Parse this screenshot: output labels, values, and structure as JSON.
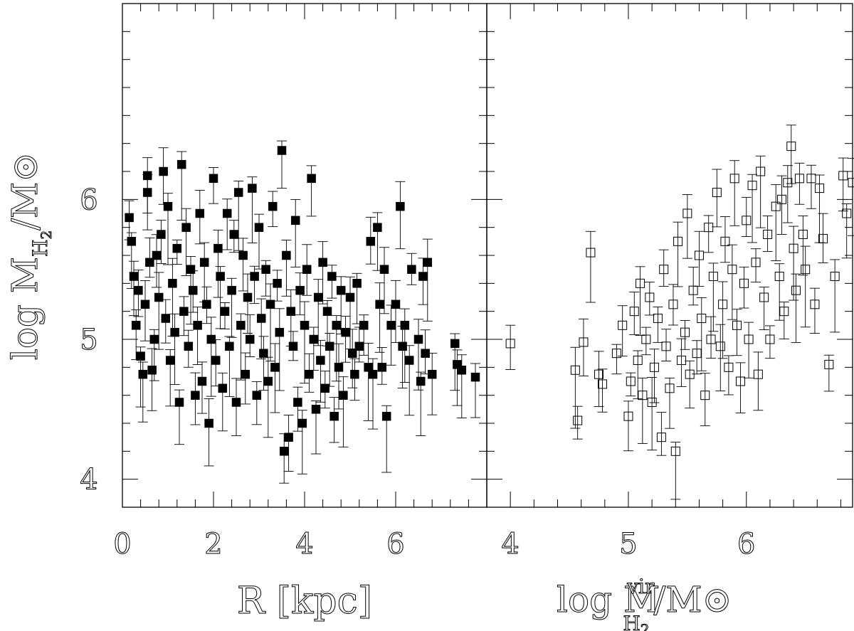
{
  "chart_data": [
    {
      "type": "scatter",
      "panel": "left",
      "marker": "filled-square",
      "xlabel": "R [kpc]",
      "ylabel": "log M_H2/M_⊙",
      "xlim": [
        0,
        8
      ],
      "ylim": [
        3.8,
        7.4
      ],
      "xticks": [
        0,
        2,
        4,
        6
      ],
      "yticks": [
        4,
        5,
        6
      ],
      "series": [
        {
          "points": [
            [
              0.15,
              5.87
            ],
            [
              0.2,
              5.7
            ],
            [
              0.25,
              5.45
            ],
            [
              0.3,
              5.1
            ],
            [
              0.35,
              5.35
            ],
            [
              0.4,
              4.88
            ],
            [
              0.45,
              4.75
            ],
            [
              0.5,
              5.25
            ],
            [
              0.55,
              6.05
            ],
            [
              0.55,
              6.17
            ],
            [
              0.6,
              5.55
            ],
            [
              0.65,
              4.78
            ],
            [
              0.7,
              5.0
            ],
            [
              0.75,
              5.6
            ],
            [
              0.8,
              5.3
            ],
            [
              0.85,
              5.75
            ],
            [
              0.9,
              6.2
            ],
            [
              0.95,
              5.15
            ],
            [
              1.0,
              5.95
            ],
            [
              1.05,
              4.85
            ],
            [
              1.1,
              5.4
            ],
            [
              1.15,
              5.05
            ],
            [
              1.2,
              5.65
            ],
            [
              1.25,
              4.55
            ],
            [
              1.3,
              6.25
            ],
            [
              1.35,
              5.2
            ],
            [
              1.4,
              5.8
            ],
            [
              1.45,
              4.95
            ],
            [
              1.5,
              5.5
            ],
            [
              1.55,
              5.35
            ],
            [
              1.6,
              4.6
            ],
            [
              1.65,
              5.1
            ],
            [
              1.7,
              5.9
            ],
            [
              1.75,
              4.7
            ],
            [
              1.8,
              5.55
            ],
            [
              1.85,
              5.25
            ],
            [
              1.9,
              4.4
            ],
            [
              1.95,
              5.0
            ],
            [
              2.0,
              6.15
            ],
            [
              2.05,
              4.85
            ],
            [
              2.1,
              5.65
            ],
            [
              2.15,
              5.45
            ],
            [
              2.2,
              4.65
            ],
            [
              2.25,
              5.2
            ],
            [
              2.3,
              5.9
            ],
            [
              2.35,
              4.95
            ],
            [
              2.4,
              5.35
            ],
            [
              2.45,
              5.75
            ],
            [
              2.5,
              4.55
            ],
            [
              2.55,
              6.05
            ],
            [
              2.6,
              5.1
            ],
            [
              2.65,
              5.6
            ],
            [
              2.7,
              4.75
            ],
            [
              2.75,
              5.3
            ],
            [
              2.8,
              5.0
            ],
            [
              2.85,
              6.08
            ],
            [
              2.9,
              5.45
            ],
            [
              2.95,
              4.6
            ],
            [
              3.0,
              5.8
            ],
            [
              3.05,
              5.15
            ],
            [
              3.1,
              4.9
            ],
            [
              3.15,
              5.5
            ],
            [
              3.2,
              4.7
            ],
            [
              3.25,
              5.25
            ],
            [
              3.3,
              5.95
            ],
            [
              3.35,
              4.8
            ],
            [
              3.4,
              5.4
            ],
            [
              3.45,
              5.05
            ],
            [
              3.5,
              6.35
            ],
            [
              3.55,
              4.2
            ],
            [
              3.6,
              5.6
            ],
            [
              3.65,
              4.3
            ],
            [
              3.7,
              5.2
            ],
            [
              3.75,
              4.95
            ],
            [
              3.8,
              5.85
            ],
            [
              3.85,
              4.55
            ],
            [
              3.9,
              5.35
            ],
            [
              3.95,
              4.4
            ],
            [
              4.0,
              5.1
            ],
            [
              4.05,
              5.5
            ],
            [
              4.1,
              4.75
            ],
            [
              4.15,
              6.15
            ],
            [
              4.2,
              5.0
            ],
            [
              4.25,
              4.5
            ],
            [
              4.3,
              5.3
            ],
            [
              4.35,
              4.85
            ],
            [
              4.4,
              5.55
            ],
            [
              4.45,
              4.65
            ],
            [
              4.5,
              5.2
            ],
            [
              4.55,
              4.95
            ],
            [
              4.6,
              5.45
            ],
            [
              4.65,
              4.45
            ],
            [
              4.7,
              5.1
            ],
            [
              4.75,
              4.8
            ],
            [
              4.8,
              5.35
            ],
            [
              4.85,
              4.6
            ],
            [
              4.9,
              5.05
            ],
            [
              5.0,
              5.3
            ],
            [
              5.05,
              4.9
            ],
            [
              5.1,
              4.75
            ],
            [
              5.15,
              5.4
            ],
            [
              5.2,
              4.95
            ],
            [
              5.3,
              5.1
            ],
            [
              5.4,
              4.8
            ],
            [
              5.45,
              5.7
            ],
            [
              5.5,
              4.75
            ],
            [
              5.6,
              5.8
            ],
            [
              5.65,
              5.25
            ],
            [
              5.7,
              4.8
            ],
            [
              5.75,
              5.5
            ],
            [
              5.8,
              4.45
            ],
            [
              5.9,
              5.1
            ],
            [
              6.0,
              5.25
            ],
            [
              6.1,
              5.95
            ],
            [
              6.15,
              4.95
            ],
            [
              6.2,
              5.1
            ],
            [
              6.3,
              4.85
            ],
            [
              6.35,
              5.5
            ],
            [
              6.5,
              5.0
            ],
            [
              6.55,
              4.7
            ],
            [
              6.6,
              5.45
            ],
            [
              6.65,
              4.9
            ],
            [
              6.7,
              5.55
            ],
            [
              6.8,
              4.75
            ],
            [
              7.3,
              4.97
            ],
            [
              7.35,
              4.82
            ],
            [
              7.45,
              4.78
            ],
            [
              7.75,
              4.73
            ]
          ]
        }
      ]
    },
    {
      "type": "scatter",
      "panel": "right",
      "marker": "open-square",
      "xlabel": "log M^vir_H2/M_⊙",
      "ylabel": "",
      "xlim": [
        3.8,
        6.9
      ],
      "ylim": [
        3.8,
        7.4
      ],
      "xticks": [
        4,
        5,
        6
      ],
      "yticks": [
        4,
        5,
        6
      ],
      "series": [
        {
          "points": [
            [
              4.0,
              4.97
            ],
            [
              4.55,
              4.78
            ],
            [
              4.57,
              4.42
            ],
            [
              4.62,
              4.98
            ],
            [
              4.68,
              5.62
            ],
            [
              4.75,
              4.75
            ],
            [
              4.78,
              4.68
            ],
            [
              4.9,
              4.9
            ],
            [
              4.95,
              5.1
            ],
            [
              5.0,
              4.45
            ],
            [
              5.02,
              4.7
            ],
            [
              5.05,
              5.2
            ],
            [
              5.08,
              4.85
            ],
            [
              5.1,
              5.4
            ],
            [
              5.12,
              4.6
            ],
            [
              5.15,
              5.0
            ],
            [
              5.18,
              5.3
            ],
            [
              5.2,
              4.55
            ],
            [
              5.22,
              4.8
            ],
            [
              5.25,
              5.15
            ],
            [
              5.28,
              4.3
            ],
            [
              5.3,
              5.5
            ],
            [
              5.32,
              4.95
            ],
            [
              5.35,
              4.65
            ],
            [
              5.38,
              5.25
            ],
            [
              5.4,
              4.2
            ],
            [
              5.42,
              5.7
            ],
            [
              5.45,
              4.85
            ],
            [
              5.48,
              5.05
            ],
            [
              5.5,
              5.9
            ],
            [
              5.52,
              4.75
            ],
            [
              5.55,
              5.35
            ],
            [
              5.58,
              4.9
            ],
            [
              5.6,
              5.6
            ],
            [
              5.62,
              5.15
            ],
            [
              5.65,
              4.6
            ],
            [
              5.68,
              5.8
            ],
            [
              5.7,
              5.0
            ],
            [
              5.72,
              5.45
            ],
            [
              5.75,
              6.05
            ],
            [
              5.78,
              4.95
            ],
            [
              5.8,
              5.25
            ],
            [
              5.82,
              5.7
            ],
            [
              5.85,
              4.8
            ],
            [
              5.88,
              5.5
            ],
            [
              5.9,
              6.15
            ],
            [
              5.92,
              5.1
            ],
            [
              5.95,
              4.7
            ],
            [
              5.98,
              5.4
            ],
            [
              6.0,
              5.85
            ],
            [
              6.02,
              5.0
            ],
            [
              6.05,
              6.1
            ],
            [
              6.08,
              5.55
            ],
            [
              6.1,
              4.75
            ],
            [
              6.12,
              6.2
            ],
            [
              6.15,
              5.3
            ],
            [
              6.18,
              5.75
            ],
            [
              6.2,
              5.0
            ],
            [
              6.25,
              5.95
            ],
            [
              6.28,
              5.45
            ],
            [
              6.3,
              6.0
            ],
            [
              6.32,
              5.2
            ],
            [
              6.35,
              6.12
            ],
            [
              6.38,
              6.38
            ],
            [
              6.4,
              5.65
            ],
            [
              6.42,
              5.35
            ],
            [
              6.45,
              6.15
            ],
            [
              6.48,
              5.75
            ],
            [
              6.5,
              5.5
            ],
            [
              6.55,
              6.15
            ],
            [
              6.58,
              5.25
            ],
            [
              6.62,
              6.08
            ],
            [
              6.65,
              5.72
            ],
            [
              6.7,
              4.82
            ],
            [
              6.75,
              5.45
            ],
            [
              6.82,
              6.17
            ],
            [
              6.85,
              5.9
            ],
            [
              6.9,
              6.12
            ]
          ]
        }
      ]
    }
  ]
}
